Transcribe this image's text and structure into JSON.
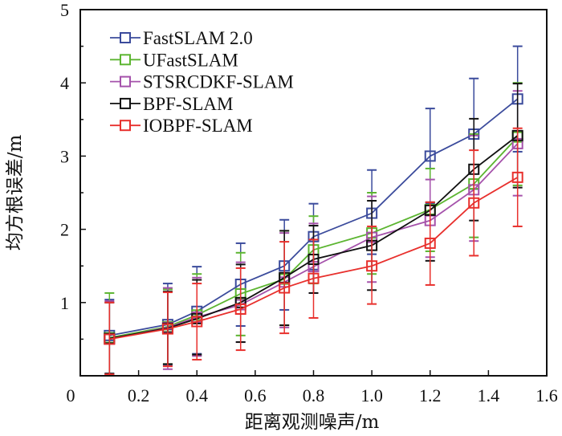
{
  "chart_data": {
    "type": "line",
    "title": "",
    "xlabel": "距离观测噪声/m",
    "ylabel": "均方根误差/m",
    "xlim": [
      0,
      1.6
    ],
    "ylim": [
      0,
      5
    ],
    "x_ticks": [
      "0",
      "0.2",
      "0.4",
      "0.6",
      "0.8",
      "1.0",
      "1.2",
      "1.4",
      "1.6"
    ],
    "x_tick_values": [
      0,
      0.2,
      0.4,
      0.6,
      0.8,
      1.0,
      1.2,
      1.4,
      1.6
    ],
    "y_ticks": [
      "1",
      "2",
      "3",
      "4",
      "5"
    ],
    "y_tick_values": [
      1,
      2,
      3,
      4,
      5
    ],
    "y_minor_tick_values": [
      0.5,
      1.5,
      2.5,
      3.5,
      4.5
    ],
    "grid": false,
    "legend_position": "top-left",
    "marker": "square",
    "x": [
      0.1,
      0.3,
      0.4,
      0.55,
      0.7,
      0.8,
      1.0,
      1.2,
      1.35,
      1.5
    ],
    "series": [
      {
        "name": "FastSLAM 2.0",
        "color": "#3b4b9c",
        "values": [
          0.55,
          0.7,
          0.88,
          1.25,
          1.5,
          1.9,
          2.22,
          3.0,
          3.3,
          3.78
        ],
        "err_upper": [
          1.04,
          1.26,
          1.49,
          1.81,
          2.13,
          2.35,
          2.81,
          3.65,
          4.06,
          4.5
        ],
        "err_lower": [
          0.03,
          0.15,
          0.3,
          0.68,
          0.9,
          1.45,
          1.66,
          2.35,
          2.55,
          3.06
        ]
      },
      {
        "name": "UFastSLAM",
        "color": "#5cb531",
        "values": [
          0.52,
          0.67,
          0.83,
          1.12,
          1.32,
          1.72,
          1.95,
          2.27,
          2.62,
          3.26
        ],
        "err_upper": [
          1.13,
          1.18,
          1.39,
          1.68,
          1.98,
          2.18,
          2.5,
          2.83,
          3.3,
          4.0
        ],
        "err_lower": [
          0.0,
          0.16,
          0.28,
          0.55,
          0.69,
          1.26,
          1.39,
          1.7,
          1.89,
          2.6
        ]
      },
      {
        "name": "STSRCDKF-SLAM",
        "color": "#a552ab",
        "values": [
          0.5,
          0.66,
          0.8,
          0.97,
          1.28,
          1.49,
          1.89,
          2.12,
          2.54,
          3.17
        ],
        "err_upper": [
          1.02,
          1.2,
          1.34,
          1.55,
          1.95,
          2.08,
          2.45,
          2.68,
          3.28,
          3.89
        ],
        "err_lower": [
          0.02,
          0.09,
          0.27,
          0.46,
          0.66,
          1.13,
          1.28,
          1.62,
          1.84,
          2.46
        ]
      },
      {
        "name": "BPF-SLAM",
        "color": "#111111",
        "values": [
          0.51,
          0.65,
          0.78,
          1.0,
          1.34,
          1.59,
          1.78,
          2.26,
          2.82,
          3.28
        ],
        "err_upper": [
          1.0,
          1.15,
          1.31,
          1.52,
          1.98,
          2.05,
          2.39,
          2.37,
          3.51,
          3.99
        ],
        "err_lower": [
          0.03,
          0.16,
          0.29,
          0.46,
          0.69,
          1.13,
          1.17,
          1.57,
          2.12,
          2.57
        ]
      },
      {
        "name": "IOBPF-SLAM",
        "color": "#e8302d",
        "values": [
          0.5,
          0.64,
          0.74,
          0.91,
          1.2,
          1.33,
          1.5,
          1.81,
          2.36,
          2.71
        ],
        "err_upper": [
          1.0,
          1.14,
          1.26,
          1.47,
          1.83,
          1.86,
          2.04,
          2.37,
          3.08,
          3.38
        ],
        "err_lower": [
          0.02,
          0.13,
          0.22,
          0.35,
          0.58,
          0.79,
          0.98,
          1.24,
          1.64,
          2.04
        ]
      }
    ]
  }
}
